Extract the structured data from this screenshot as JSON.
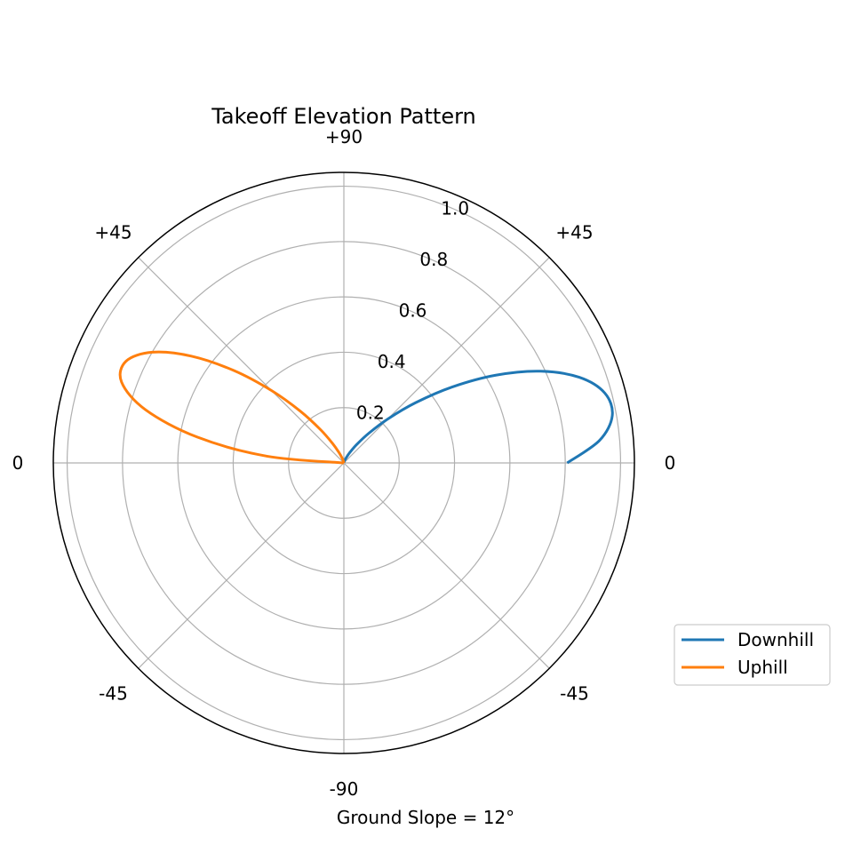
{
  "chart_data": {
    "type": "line",
    "projection": "polar",
    "title": "Takeoff Elevation Pattern",
    "xlabel": "Ground Slope = 12°",
    "ylabel": "",
    "angle_unit": "degrees",
    "angle_ticks": [
      {
        "angle": 0,
        "label": "0"
      },
      {
        "angle": 45,
        "label": "+45"
      },
      {
        "angle": 90,
        "label": "+90"
      },
      {
        "angle": 135,
        "label": "+45"
      },
      {
        "angle": 180,
        "label": "0"
      },
      {
        "angle": 225,
        "label": "-45"
      },
      {
        "angle": 270,
        "label": "-90"
      },
      {
        "angle": 315,
        "label": "-45"
      }
    ],
    "radial_ticks": [
      0.2,
      0.4,
      0.6,
      0.8,
      1.0
    ],
    "radial_tick_labels": [
      "0.2",
      "0.4",
      "0.6",
      "0.8",
      "1.0"
    ],
    "rlim": [
      0,
      1.05
    ],
    "grid": true,
    "legend_position": "lower-right outside",
    "series": [
      {
        "name": "Downhill",
        "color": "#1f77b4",
        "theta": [
          0,
          5,
          10,
          15,
          20,
          25,
          30,
          35,
          40,
          45,
          50,
          55,
          60,
          65,
          70,
          75,
          80,
          85,
          90
        ],
        "r": [
          0.807,
          0.927,
          0.985,
          0.976,
          0.905,
          0.784,
          0.634,
          0.479,
          0.339,
          0.225,
          0.14,
          0.082,
          0.045,
          0.023,
          0.011,
          0.004,
          0.001,
          0.0003,
          0.0
        ]
      },
      {
        "name": "Uphill",
        "color": "#ff7f0e",
        "theta": [
          90,
          100,
          105,
          110,
          115,
          120,
          125,
          130,
          135,
          140,
          145,
          150,
          155,
          160,
          165,
          170,
          175,
          180
        ],
        "r": [
          0.0,
          0.0027,
          0.007,
          0.018,
          0.04,
          0.08,
          0.146,
          0.243,
          0.37,
          0.52,
          0.673,
          0.8,
          0.869,
          0.855,
          0.742,
          0.538,
          0.279,
          0.0
        ]
      }
    ]
  }
}
